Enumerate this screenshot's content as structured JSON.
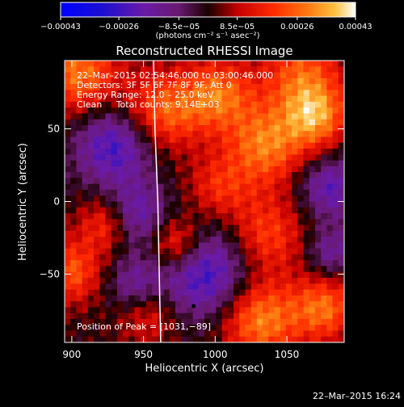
{
  "colorbar": {
    "ticks": [
      "−0.00043",
      "−0.00026",
      "−8.5e−05",
      "8.5e−05",
      "0.00026",
      "0.00043"
    ],
    "tick_values": [
      -0.00043,
      -0.00026,
      -8.5e-05,
      8.5e-05,
      0.00026,
      0.00043
    ],
    "range": [
      -0.00043,
      0.00043
    ],
    "unit_label": "(photons cm⁻² s⁻¹ asec⁻²)"
  },
  "title": "Reconstructed RHESSI Image",
  "info_lines": [
    "22–Mar–2015 02:54:46.000 to 03:00:46.000",
    "Detectors: 3F 5F 6F 7F 8F 9F, Att 0",
    "Energy Range: 12.0 – 25.0 keV",
    "Clean     Total counts: 9.14E+03"
  ],
  "peak_label": "Position of Peak = [1031,−89]",
  "footer": "22–Mar–2015 16:24",
  "chart_data": {
    "type": "heatmap",
    "title": "Reconstructed RHESSI Image",
    "xlabel": "Heliocentric X (arcsec)",
    "ylabel": "Heliocentric Y (arcsec)",
    "xlim": [
      895,
      1090
    ],
    "ylim": [
      -97,
      97
    ],
    "xticks": [
      900,
      950,
      1000,
      1050
    ],
    "yticks": [
      -50,
      0,
      50
    ],
    "xtick_labels": [
      "900",
      "950",
      "1000",
      "1050"
    ],
    "ytick_labels": [
      "−50",
      "0",
      "50"
    ],
    "colormap": "rainbow (blue → purple → red → orange → yellow → white)",
    "value_range": [
      -0.00043,
      0.00043
    ],
    "limb_curve": [
      [
        957,
        97
      ],
      [
        958,
        50
      ],
      [
        960,
        0
      ],
      [
        961,
        -50
      ],
      [
        962,
        -97
      ]
    ],
    "marker": {
      "x": 985,
      "y": -72
    }
  }
}
